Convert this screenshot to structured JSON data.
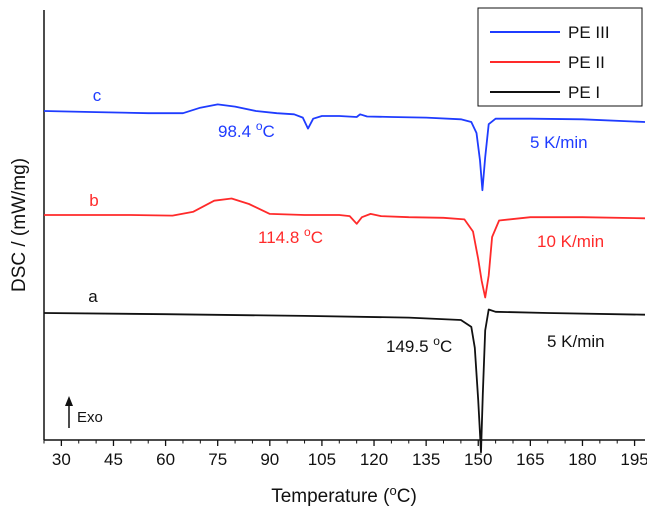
{
  "chart_data": {
    "type": "line",
    "xlabel": "Temperature (°C)",
    "ylabel": "DSC / (mW/mg)",
    "xlim": [
      25,
      198
    ],
    "xticks": [
      "30",
      "45",
      "60",
      "75",
      "90",
      "105",
      "120",
      "135",
      "150",
      "165",
      "180",
      "195"
    ],
    "y_tick_labels_shown": false,
    "grid": false,
    "legend_position": "top-right",
    "colors": {
      "PE III": "#1f3cff",
      "PE II": "#ff2a2a",
      "PE I": "#111111"
    },
    "legend": [
      "PE III",
      "PE II",
      "PE I"
    ],
    "series": [
      {
        "name": "PE III",
        "color": "#1f3cff",
        "curve_label": "c",
        "rate_label": "5 K/min",
        "peak_label": "98.4 °C",
        "points": [
          [
            25,
            0.0
          ],
          [
            40,
            -0.1
          ],
          [
            55,
            -0.2
          ],
          [
            65,
            -0.2
          ],
          [
            70,
            0.3
          ],
          [
            75,
            0.6
          ],
          [
            80,
            0.4
          ],
          [
            86,
            0.0
          ],
          [
            92,
            -0.2
          ],
          [
            97,
            -0.3
          ],
          [
            99.5,
            -0.6
          ],
          [
            101,
            -1.6
          ],
          [
            102.5,
            -0.7
          ],
          [
            105,
            -0.45
          ],
          [
            110,
            -0.45
          ],
          [
            115,
            -0.55
          ],
          [
            116,
            -0.3
          ],
          [
            118,
            -0.5
          ],
          [
            125,
            -0.55
          ],
          [
            135,
            -0.6
          ],
          [
            145,
            -0.75
          ],
          [
            148,
            -1.0
          ],
          [
            149.5,
            -2.0
          ],
          [
            150.5,
            -4.5
          ],
          [
            151.2,
            -7.2
          ],
          [
            152,
            -4.2
          ],
          [
            153,
            -1.2
          ],
          [
            155,
            -0.7
          ],
          [
            165,
            -0.7
          ],
          [
            180,
            -0.75
          ],
          [
            198,
            -1.0
          ]
        ]
      },
      {
        "name": "PE II",
        "color": "#ff2a2a",
        "curve_label": "b",
        "rate_label": "10 K/min",
        "peak_label": "114.8 °C",
        "points": [
          [
            25,
            0.0
          ],
          [
            50,
            0.0
          ],
          [
            62,
            -0.05
          ],
          [
            68,
            0.3
          ],
          [
            74,
            1.3
          ],
          [
            79,
            1.5
          ],
          [
            84,
            1.0
          ],
          [
            90,
            0.1
          ],
          [
            100,
            0.0
          ],
          [
            110,
            0.0
          ],
          [
            113,
            -0.1
          ],
          [
            115,
            -0.8
          ],
          [
            116.5,
            -0.2
          ],
          [
            119,
            0.1
          ],
          [
            122,
            -0.1
          ],
          [
            130,
            -0.2
          ],
          [
            140,
            -0.25
          ],
          [
            146,
            -0.4
          ],
          [
            148.5,
            -1.5
          ],
          [
            150,
            -4.0
          ],
          [
            151,
            -6.0
          ],
          [
            152,
            -7.5
          ],
          [
            153,
            -5.5
          ],
          [
            154,
            -2.0
          ],
          [
            156,
            -0.5
          ],
          [
            165,
            -0.2
          ],
          [
            180,
            -0.2
          ],
          [
            198,
            -0.3
          ]
        ]
      },
      {
        "name": "PE I",
        "color": "#111111",
        "curve_label": "a",
        "rate_label": "5 K/min",
        "peak_label": "149.5 °C",
        "points": [
          [
            25,
            0.0
          ],
          [
            60,
            -0.1
          ],
          [
            100,
            -0.25
          ],
          [
            130,
            -0.4
          ],
          [
            145,
            -0.6
          ],
          [
            148,
            -1.2
          ],
          [
            149,
            -3.0
          ],
          [
            150,
            -7.5
          ],
          [
            150.8,
            -12.0
          ],
          [
            151.3,
            -7.0
          ],
          [
            152,
            -1.5
          ],
          [
            153,
            0.3
          ],
          [
            155,
            0.1
          ],
          [
            170,
            0.0
          ],
          [
            198,
            -0.15
          ]
        ]
      }
    ],
    "annotation": "Exo"
  }
}
